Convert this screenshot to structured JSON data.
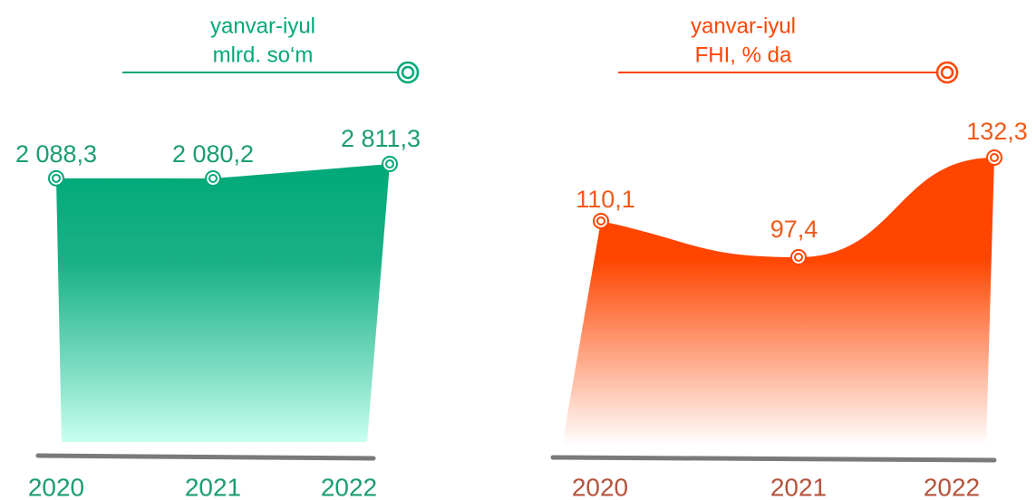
{
  "chart_data": [
    {
      "type": "area",
      "title": "yanvar-iyul",
      "subtitle": "mlrd. so‘m",
      "categories": [
        "2020",
        "2021",
        "2022"
      ],
      "values": [
        2088.3,
        2080.2,
        2811.3
      ],
      "value_labels": [
        "2 088,3",
        "2 080,2",
        "2 811,3"
      ],
      "color": "#00a878",
      "fade_color": "#c9fff0",
      "label_color": "#1a9e6e",
      "category_color": "#1a9e6e",
      "smooth": false
    },
    {
      "type": "area",
      "title": "yanvar-iyul",
      "subtitle": "FHI, % da",
      "categories": [
        "2020",
        "2021",
        "2022"
      ],
      "values": [
        110.1,
        97.4,
        132.3
      ],
      "value_labels": [
        "110,1",
        "97,4",
        "132,3"
      ],
      "color": "#ff4500",
      "fade_color": "#ffffff",
      "label_color": "#f05a1a",
      "category_color": "#b5533c",
      "smooth": true
    }
  ]
}
